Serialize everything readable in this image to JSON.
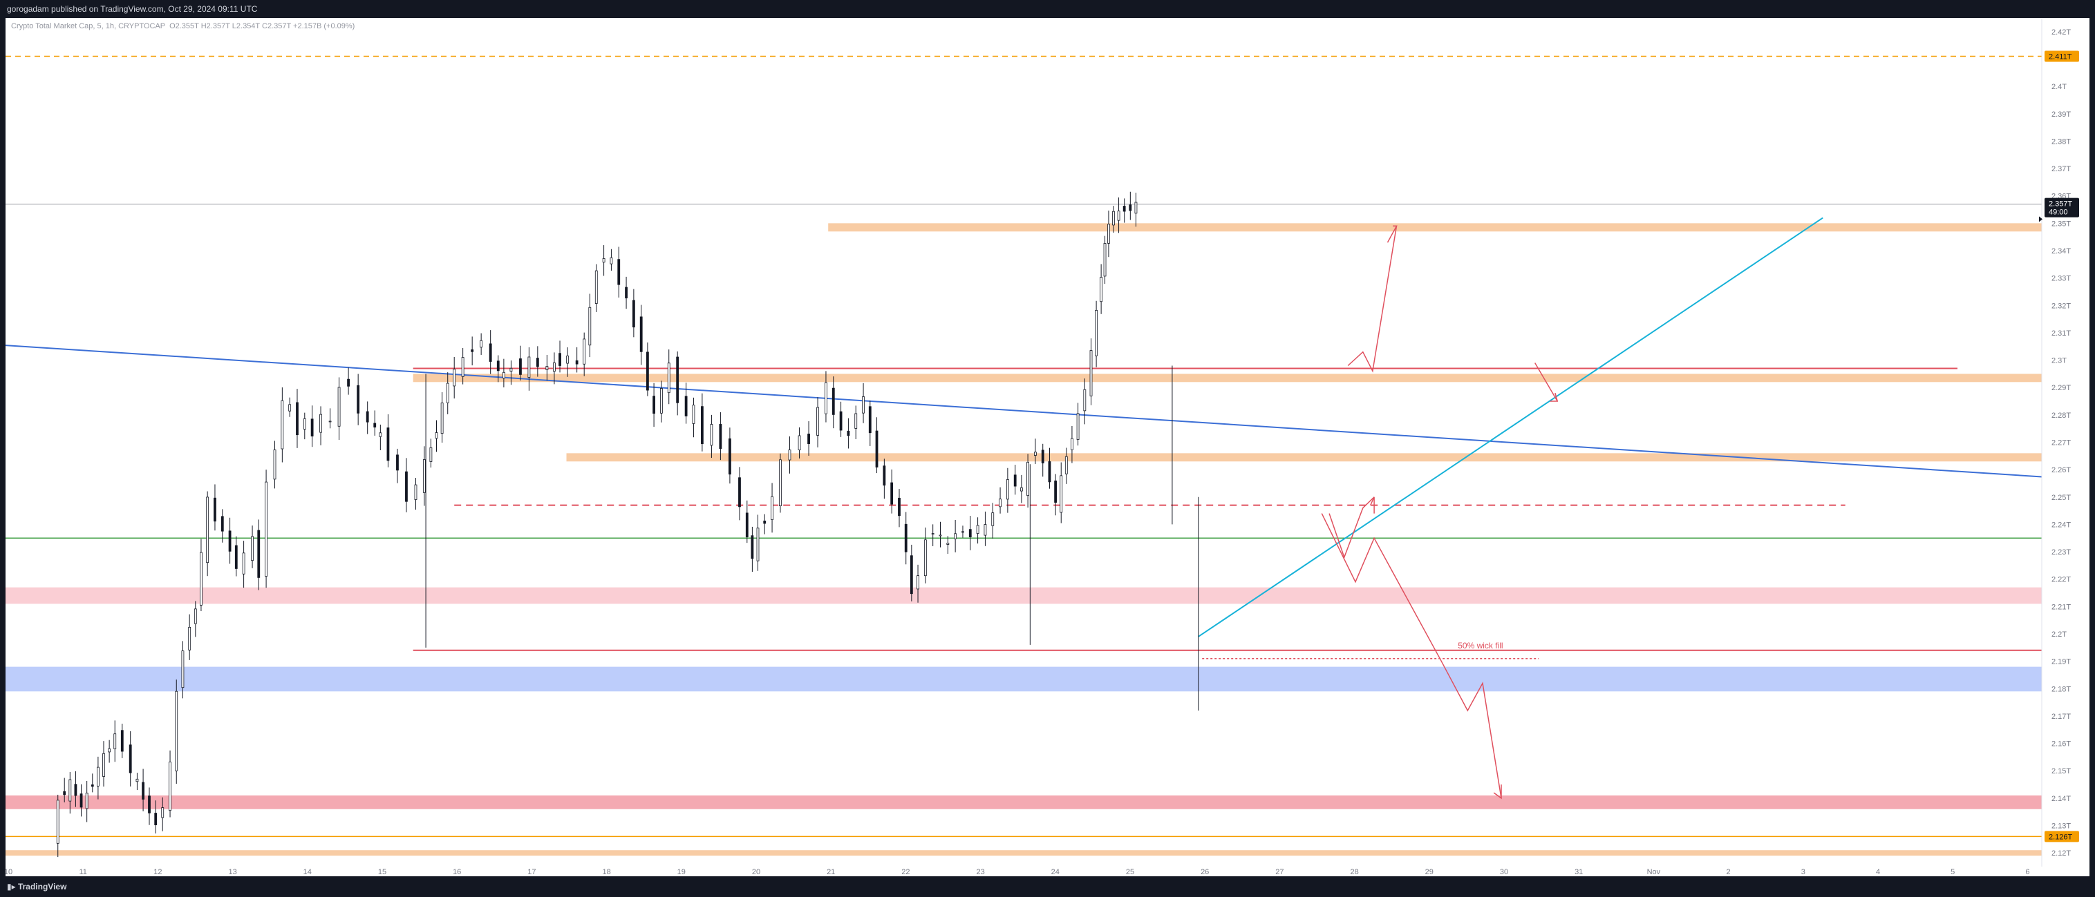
{
  "header": {
    "published": "gorogadam published on TradingView.com, Oct 29, 2024 09:11 UTC"
  },
  "legend": {
    "symbol": "Crypto Total Market Cap, 5, 1h, CRYPTOCAP",
    "ohlc": "O2.355T H2.357T L2.354T C2.357T +2.157B (+0.09%)"
  },
  "footer": {
    "brand": "TradingView"
  },
  "colors": {
    "accent_orange": "#f59d00",
    "zone_peach": "#f7c79a",
    "zone_pink": "#f9c9cf",
    "zone_red": "#f3a0aa",
    "zone_blue": "#b6c8fb",
    "line_blue": "#3c6fd6",
    "line_cyan": "#17b2d8",
    "line_green": "#43a047",
    "line_red": "#e0505e",
    "candle": "#131722"
  },
  "chart_data": {
    "type": "candlestick",
    "symbol": "Crypto Total Market Cap",
    "timeframe": "1h",
    "x_axis": {
      "labels": [
        "10",
        "11",
        "12",
        "13",
        "14",
        "15",
        "16",
        "17",
        "18",
        "19",
        "20",
        "21",
        "22",
        "23",
        "24",
        "25",
        "26",
        "27",
        "28",
        "29",
        "30",
        "31",
        "Nov",
        "2",
        "3",
        "4",
        "5",
        "6"
      ]
    },
    "y_axis": {
      "unit": "T",
      "range": [
        2.115,
        2.425
      ],
      "ticks": [
        "2.12T",
        "2.13T",
        "2.14T",
        "2.15T",
        "2.16T",
        "2.17T",
        "2.18T",
        "2.19T",
        "2.2T",
        "2.21T",
        "2.22T",
        "2.23T",
        "2.24T",
        "2.25T",
        "2.26T",
        "2.27T",
        "2.28T",
        "2.29T",
        "2.3T",
        "2.31T",
        "2.32T",
        "2.33T",
        "2.34T",
        "2.35T",
        "2.36T",
        "2.37T",
        "2.38T",
        "2.39T",
        "2.4T",
        "2.41T",
        "2.42T"
      ]
    },
    "price_tags": [
      {
        "label": "2.411T",
        "value": 2.411,
        "kind": "orange"
      },
      {
        "label": "2.357T",
        "sub": "49:00",
        "value": 2.357,
        "kind": "last"
      },
      {
        "label": "2.126T",
        "value": 2.126,
        "kind": "orange"
      }
    ],
    "price_path": [
      [
        10.65,
        2.122
      ],
      [
        10.75,
        2.14
      ],
      [
        10.9,
        2.145
      ],
      [
        11.05,
        2.137
      ],
      [
        11.2,
        2.146
      ],
      [
        11.35,
        2.155
      ],
      [
        11.5,
        2.163
      ],
      [
        11.62,
        2.158
      ],
      [
        11.72,
        2.15
      ],
      [
        11.88,
        2.14
      ],
      [
        12.05,
        2.13
      ],
      [
        12.15,
        2.138
      ],
      [
        12.25,
        2.152
      ],
      [
        12.32,
        2.178
      ],
      [
        12.42,
        2.195
      ],
      [
        12.5,
        2.202
      ],
      [
        12.58,
        2.21
      ],
      [
        12.65,
        2.23
      ],
      [
        12.75,
        2.248
      ],
      [
        12.85,
        2.242
      ],
      [
        12.95,
        2.238
      ],
      [
        13.05,
        2.23
      ],
      [
        13.12,
        2.225
      ],
      [
        13.25,
        2.228
      ],
      [
        13.35,
        2.235
      ],
      [
        13.42,
        2.222
      ],
      [
        13.55,
        2.255
      ],
      [
        13.65,
        2.268
      ],
      [
        13.75,
        2.285
      ],
      [
        13.85,
        2.282
      ],
      [
        13.95,
        2.274
      ],
      [
        14.05,
        2.279
      ],
      [
        14.15,
        2.272
      ],
      [
        14.28,
        2.281
      ],
      [
        14.4,
        2.276
      ],
      [
        14.52,
        2.29
      ],
      [
        14.65,
        2.292
      ],
      [
        14.78,
        2.28
      ],
      [
        14.9,
        2.278
      ],
      [
        15.05,
        2.272
      ],
      [
        15.18,
        2.265
      ],
      [
        15.3,
        2.26
      ],
      [
        15.42,
        2.248
      ],
      [
        15.55,
        2.255
      ],
      [
        15.65,
        2.262
      ],
      [
        15.8,
        2.275
      ],
      [
        15.95,
        2.292
      ],
      [
        16.05,
        2.296
      ],
      [
        16.18,
        2.3
      ],
      [
        16.3,
        2.305
      ],
      [
        16.42,
        2.307
      ],
      [
        16.55,
        2.299
      ],
      [
        16.7,
        2.294
      ],
      [
        16.82,
        2.298
      ],
      [
        16.95,
        2.296
      ],
      [
        17.05,
        2.3
      ],
      [
        17.18,
        2.298
      ],
      [
        17.3,
        2.297
      ],
      [
        17.45,
        2.3
      ],
      [
        17.58,
        2.301
      ],
      [
        17.7,
        2.298
      ],
      [
        17.85,
        2.318
      ],
      [
        17.95,
        2.334
      ],
      [
        18.05,
        2.338
      ],
      [
        18.15,
        2.336
      ],
      [
        18.25,
        2.328
      ],
      [
        18.35,
        2.322
      ],
      [
        18.45,
        2.312
      ],
      [
        18.55,
        2.305
      ],
      [
        18.62,
        2.288
      ],
      [
        18.72,
        2.28
      ],
      [
        18.82,
        2.29
      ],
      [
        18.92,
        2.298
      ],
      [
        19.05,
        2.286
      ],
      [
        19.15,
        2.28
      ],
      [
        19.25,
        2.282
      ],
      [
        19.38,
        2.27
      ],
      [
        19.5,
        2.276
      ],
      [
        19.62,
        2.268
      ],
      [
        19.75,
        2.26
      ],
      [
        19.88,
        2.245
      ],
      [
        19.95,
        2.235
      ],
      [
        20.02,
        2.228
      ],
      [
        20.1,
        2.238
      ],
      [
        20.2,
        2.242
      ],
      [
        20.3,
        2.25
      ],
      [
        20.42,
        2.262
      ],
      [
        20.55,
        2.268
      ],
      [
        20.68,
        2.272
      ],
      [
        20.8,
        2.27
      ],
      [
        20.92,
        2.284
      ],
      [
        21.02,
        2.29
      ],
      [
        21.12,
        2.28
      ],
      [
        21.22,
        2.275
      ],
      [
        21.32,
        2.272
      ],
      [
        21.42,
        2.282
      ],
      [
        21.52,
        2.286
      ],
      [
        21.6,
        2.272
      ],
      [
        21.7,
        2.262
      ],
      [
        21.8,
        2.254
      ],
      [
        21.9,
        2.248
      ],
      [
        22.0,
        2.244
      ],
      [
        22.08,
        2.228
      ],
      [
        22.15,
        2.215
      ],
      [
        22.25,
        2.222
      ],
      [
        22.35,
        2.234
      ],
      [
        22.45,
        2.238
      ],
      [
        22.55,
        2.235
      ],
      [
        22.65,
        2.232
      ],
      [
        22.75,
        2.238
      ],
      [
        22.85,
        2.237
      ],
      [
        22.95,
        2.236
      ],
      [
        23.05,
        2.24
      ],
      [
        23.15,
        2.238
      ],
      [
        23.25,
        2.245
      ],
      [
        23.35,
        2.25
      ],
      [
        23.45,
        2.256
      ],
      [
        23.55,
        2.255
      ],
      [
        23.62,
        2.252
      ],
      [
        23.72,
        2.262
      ],
      [
        23.82,
        2.268
      ],
      [
        23.92,
        2.262
      ],
      [
        24.0,
        2.256
      ],
      [
        24.08,
        2.248
      ],
      [
        24.15,
        2.256
      ],
      [
        24.22,
        2.266
      ],
      [
        24.3,
        2.272
      ],
      [
        24.38,
        2.28
      ],
      [
        24.48,
        2.29
      ],
      [
        24.55,
        2.302
      ],
      [
        24.62,
        2.318
      ],
      [
        24.68,
        2.332
      ],
      [
        24.72,
        2.342
      ],
      [
        24.78,
        2.35
      ],
      [
        24.85,
        2.354
      ],
      [
        24.92,
        2.353
      ],
      [
        25.0,
        2.356
      ],
      [
        25.08,
        2.355
      ],
      [
        25.15,
        2.357
      ]
    ],
    "drawings": {
      "horizontal_zones": [
        {
          "name": "peach-zone-2.35",
          "from": 2.347,
          "to": 2.35,
          "color": "peach"
        },
        {
          "name": "peach-zone-2.295",
          "from": 2.292,
          "to": 2.295,
          "color": "peach"
        },
        {
          "name": "peach-zone-2.265",
          "from": 2.263,
          "to": 2.266,
          "color": "peach"
        },
        {
          "name": "pink-zone-2.215",
          "from": 2.211,
          "to": 2.217,
          "color": "pink"
        },
        {
          "name": "blue-zone-2.183",
          "from": 2.179,
          "to": 2.188,
          "color": "blue"
        },
        {
          "name": "red-zone-2.138",
          "from": 2.136,
          "to": 2.141,
          "color": "red"
        },
        {
          "name": "peach-zone-2.12",
          "from": 2.119,
          "to": 2.121,
          "color": "peach"
        }
      ],
      "annotation": "50% wick fill"
    }
  }
}
